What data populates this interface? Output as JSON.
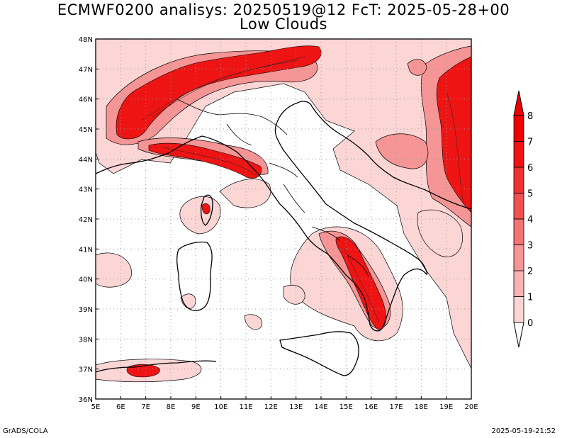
{
  "title": {
    "line1": "ECMWF0200 analisys: 20250519@12 FcT: 2025-05-28+00",
    "line2": "Low Clouds"
  },
  "footer": {
    "left": "GrADS/COLA",
    "right": "2025-05-19-21:52"
  },
  "map": {
    "lon_labels": [
      "5E",
      "6E",
      "7E",
      "8E",
      "9E",
      "10E",
      "11E",
      "12E",
      "13E",
      "14E",
      "15E",
      "16E",
      "17E",
      "18E",
      "19E",
      "20E"
    ],
    "lat_labels": [
      "48N",
      "47N",
      "46N",
      "45N",
      "44N",
      "43N",
      "42N",
      "41N",
      "40N",
      "39N",
      "38N",
      "37N",
      "36N"
    ],
    "lon_range": [
      5,
      20
    ],
    "lat_range": [
      36,
      48
    ],
    "grid": "dotted"
  },
  "colorbar": {
    "levels": [
      "0",
      "1",
      "2",
      "3",
      "4",
      "5",
      "6",
      "7",
      "8"
    ],
    "colors": [
      "#ffffff",
      "#fcd5d5",
      "#f8b4b4",
      "#f59595",
      "#f27474",
      "#f05252",
      "#ee3232",
      "#ee1414",
      "#ee0000"
    ]
  }
}
